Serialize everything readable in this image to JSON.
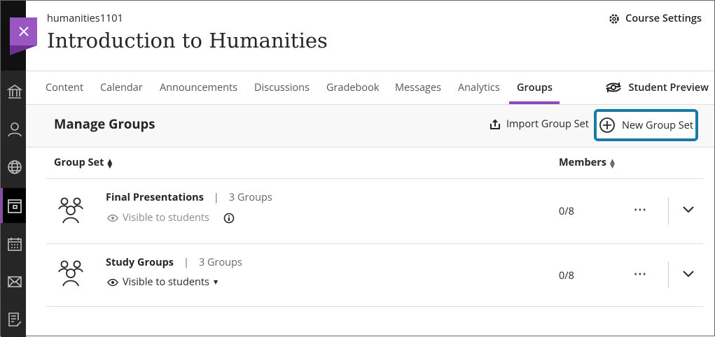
{
  "course": {
    "code": "humanities1101",
    "title": "Introduction to Humanities",
    "settings_label": "Course Settings",
    "preview_label": "Student Preview"
  },
  "tabs": [
    {
      "label": "Content"
    },
    {
      "label": "Calendar"
    },
    {
      "label": "Announcements"
    },
    {
      "label": "Discussions"
    },
    {
      "label": "Gradebook"
    },
    {
      "label": "Messages"
    },
    {
      "label": "Analytics"
    },
    {
      "label": "Groups",
      "active": true
    }
  ],
  "manage": {
    "title": "Manage Groups",
    "import_label": "Import Group Set",
    "new_label": "New Group Set"
  },
  "table": {
    "col_groupset": "Group Set",
    "col_members": "Members",
    "rows": [
      {
        "name": "Final Presentations",
        "count": "3 Groups",
        "visibility": "Visible to students",
        "members": "0/8"
      },
      {
        "name": "Study Groups",
        "count": "3 Groups",
        "visibility": "Visible to students",
        "members": "0/8"
      }
    ]
  },
  "colors": {
    "accent": "#8f4ab8",
    "focus": "#1a7aa6",
    "sidebar": "#262626"
  }
}
